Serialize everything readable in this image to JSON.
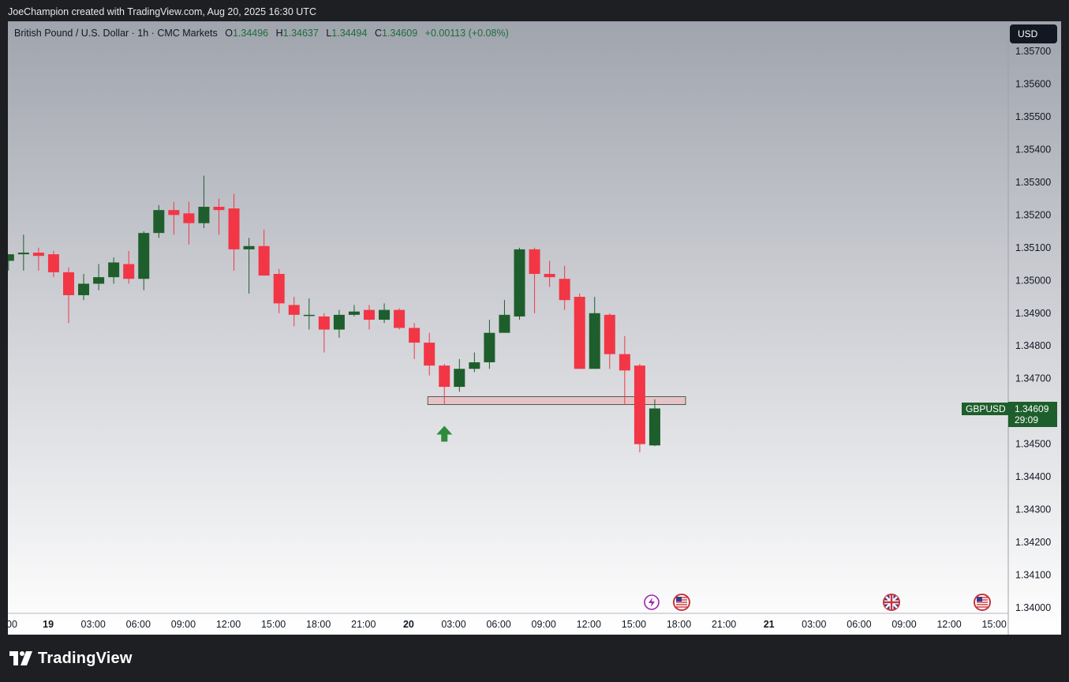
{
  "credit": "JoeChampion created with TradingView.com, Aug 20, 2025 16:30 UTC",
  "legend": {
    "symbol": "British Pound / U.S. Dollar · 1h · CMC Markets",
    "o_label": "O",
    "o_value": "1.34496",
    "h_label": "H",
    "h_value": "1.34637",
    "l_label": "L",
    "l_value": "1.34494",
    "c_label": "C",
    "c_value": "1.34609",
    "change": "+0.00113 (+0.08%)"
  },
  "currency_button": "USD",
  "price_tag": {
    "symbol": "GBPUSD",
    "price": "1.34609",
    "countdown": "29:09"
  },
  "logo_text": "TradingView",
  "colors": {
    "up": "#1e5e2c",
    "down": "#f23645",
    "zone_fill": "#e6c3c6",
    "marker": "#2e8b3a"
  },
  "icons": [
    "lightning-event-icon",
    "us-flag-icon",
    "uk-flag-icon",
    "us-flag-icon"
  ],
  "chart_data": {
    "type": "candlestick",
    "title": "British Pound / U.S. Dollar · 1h · CMC Markets",
    "ylim": [
      1.3396,
      1.3579
    ],
    "y_ticks": [
      "1.35700",
      "1.35600",
      "1.35500",
      "1.35400",
      "1.35300",
      "1.35200",
      "1.35100",
      "1.35000",
      "1.34900",
      "1.34800",
      "1.34700",
      "1.34500",
      "1.34400",
      "1.34300",
      "1.34200",
      "1.34100",
      "1.34000"
    ],
    "x_ticks": [
      "00",
      "19",
      "03:00",
      "06:00",
      "09:00",
      "12:00",
      "15:00",
      "18:00",
      "21:00",
      "20",
      "03:00",
      "06:00",
      "09:00",
      "12:00",
      "15:00",
      "18:00",
      "21:00",
      "21",
      "03:00",
      "06:00",
      "09:00",
      "12:00",
      "15:00"
    ],
    "x_ticks_bold": [
      "19",
      "20",
      "21"
    ],
    "candles": [
      {
        "o": 1.3506,
        "h": 1.3508,
        "l": 1.3503,
        "c": 1.3508
      },
      {
        "o": 1.3508,
        "h": 1.3514,
        "l": 1.3503,
        "c": 1.35085
      },
      {
        "o": 1.35085,
        "h": 1.351,
        "l": 1.3503,
        "c": 1.35075
      },
      {
        "o": 1.3508,
        "h": 1.3509,
        "l": 1.3501,
        "c": 1.35025
      },
      {
        "o": 1.35025,
        "h": 1.3504,
        "l": 1.3487,
        "c": 1.34955
      },
      {
        "o": 1.34955,
        "h": 1.3502,
        "l": 1.3494,
        "c": 1.3499
      },
      {
        "o": 1.3499,
        "h": 1.3505,
        "l": 1.3497,
        "c": 1.3501
      },
      {
        "o": 1.3501,
        "h": 1.3507,
        "l": 1.3499,
        "c": 1.35055
      },
      {
        "o": 1.3505,
        "h": 1.3509,
        "l": 1.3499,
        "c": 1.35005
      },
      {
        "o": 1.35005,
        "h": 1.3515,
        "l": 1.3497,
        "c": 1.35145
      },
      {
        "o": 1.35145,
        "h": 1.3523,
        "l": 1.3513,
        "c": 1.35215
      },
      {
        "o": 1.35215,
        "h": 1.3524,
        "l": 1.3514,
        "c": 1.352
      },
      {
        "o": 1.35205,
        "h": 1.3524,
        "l": 1.3511,
        "c": 1.35175
      },
      {
        "o": 1.35175,
        "h": 1.3532,
        "l": 1.3516,
        "c": 1.35225
      },
      {
        "o": 1.35225,
        "h": 1.3525,
        "l": 1.3514,
        "c": 1.35215
      },
      {
        "o": 1.3522,
        "h": 1.35265,
        "l": 1.3503,
        "c": 1.35095
      },
      {
        "o": 1.35095,
        "h": 1.3513,
        "l": 1.3496,
        "c": 1.35105
      },
      {
        "o": 1.35105,
        "h": 1.35155,
        "l": 1.3502,
        "c": 1.35015
      },
      {
        "o": 1.3502,
        "h": 1.35035,
        "l": 1.349,
        "c": 1.3493
      },
      {
        "o": 1.34925,
        "h": 1.3495,
        "l": 1.3486,
        "c": 1.34895
      },
      {
        "o": 1.34895,
        "h": 1.34945,
        "l": 1.3485,
        "c": 1.34895
      },
      {
        "o": 1.3489,
        "h": 1.349,
        "l": 1.3478,
        "c": 1.3485
      },
      {
        "o": 1.3485,
        "h": 1.3491,
        "l": 1.34825,
        "c": 1.34895
      },
      {
        "o": 1.34895,
        "h": 1.34925,
        "l": 1.3489,
        "c": 1.34905
      },
      {
        "o": 1.3491,
        "h": 1.34925,
        "l": 1.3485,
        "c": 1.3488
      },
      {
        "o": 1.3488,
        "h": 1.3493,
        "l": 1.3487,
        "c": 1.3491
      },
      {
        "o": 1.3491,
        "h": 1.34915,
        "l": 1.3485,
        "c": 1.34855
      },
      {
        "o": 1.34855,
        "h": 1.3487,
        "l": 1.3476,
        "c": 1.3481
      },
      {
        "o": 1.3481,
        "h": 1.3484,
        "l": 1.3471,
        "c": 1.3474
      },
      {
        "o": 1.3474,
        "h": 1.34745,
        "l": 1.3462,
        "c": 1.34675
      },
      {
        "o": 1.34675,
        "h": 1.3476,
        "l": 1.3466,
        "c": 1.3473
      },
      {
        "o": 1.3473,
        "h": 1.3478,
        "l": 1.3472,
        "c": 1.3475
      },
      {
        "o": 1.3475,
        "h": 1.3488,
        "l": 1.3473,
        "c": 1.3484
      },
      {
        "o": 1.3484,
        "h": 1.3494,
        "l": 1.3484,
        "c": 1.34895
      },
      {
        "o": 1.3489,
        "h": 1.351,
        "l": 1.3488,
        "c": 1.35095
      },
      {
        "o": 1.35095,
        "h": 1.351,
        "l": 1.349,
        "c": 1.3502
      },
      {
        "o": 1.3502,
        "h": 1.3506,
        "l": 1.3498,
        "c": 1.3501
      },
      {
        "o": 1.35005,
        "h": 1.35045,
        "l": 1.3491,
        "c": 1.3494
      },
      {
        "o": 1.3495,
        "h": 1.3496,
        "l": 1.3473,
        "c": 1.3473
      },
      {
        "o": 1.3473,
        "h": 1.3495,
        "l": 1.3473,
        "c": 1.349
      },
      {
        "o": 1.34895,
        "h": 1.349,
        "l": 1.3473,
        "c": 1.34775
      },
      {
        "o": 1.34775,
        "h": 1.3483,
        "l": 1.3462,
        "c": 1.34725
      },
      {
        "o": 1.3474,
        "h": 1.34745,
        "l": 1.34475,
        "c": 1.345
      },
      {
        "o": 1.34496,
        "h": 1.34637,
        "l": 1.34494,
        "c": 1.34609
      }
    ],
    "zone": {
      "from_index": 28,
      "to_index": 44,
      "low": 1.3462,
      "high": 1.3464
    },
    "marker": {
      "type": "arrow-up",
      "index": 29,
      "price": 1.3458
    }
  }
}
